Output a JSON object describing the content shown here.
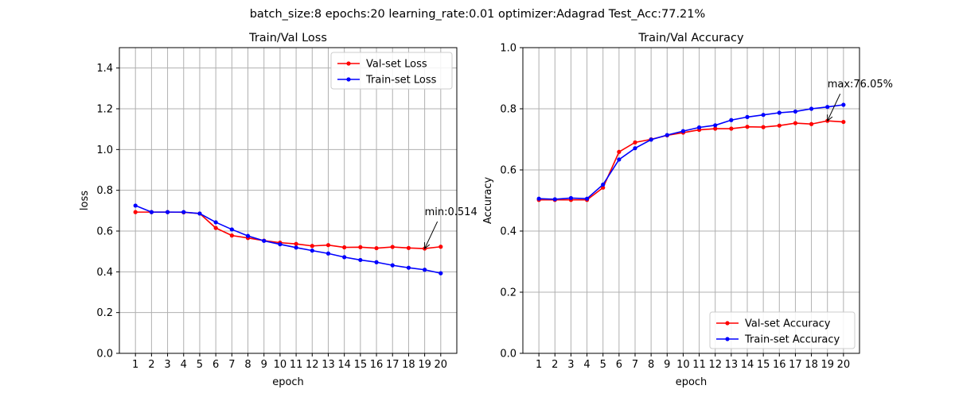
{
  "suptitle": "batch_size:8   epochs:20   learning_rate:0.01   optimizer:Adagrad   Test_Acc:77.21%",
  "colors": {
    "val": "#ff0000",
    "train": "#0000ff",
    "grid": "#b0b0b0"
  },
  "chart_data": [
    {
      "type": "line",
      "title": "Train/Val Loss",
      "xlabel": "epoch",
      "ylabel": "loss",
      "x": [
        1,
        2,
        3,
        4,
        5,
        6,
        7,
        8,
        9,
        10,
        11,
        12,
        13,
        14,
        15,
        16,
        17,
        18,
        19,
        20
      ],
      "xticks": [
        "1",
        "2",
        "3",
        "4",
        "5",
        "6",
        "7",
        "8",
        "9",
        "10",
        "11",
        "12",
        "13",
        "14",
        "15",
        "16",
        "17",
        "18",
        "19",
        "20"
      ],
      "ylim": [
        0,
        1.5
      ],
      "yticks": [
        "0.0",
        "0.2",
        "0.4",
        "0.6",
        "0.8",
        "1.0",
        "1.2",
        "1.4"
      ],
      "grid": true,
      "legend_position": "top-right",
      "series": [
        {
          "name": "Val-set Loss",
          "color": "#ff0000",
          "values": [
            0.693,
            0.693,
            0.693,
            0.692,
            0.686,
            0.615,
            0.578,
            0.566,
            0.553,
            0.543,
            0.537,
            0.527,
            0.531,
            0.52,
            0.521,
            0.516,
            0.522,
            0.517,
            0.514,
            0.523
          ]
        },
        {
          "name": "Train-set Loss",
          "color": "#0000ff",
          "values": [
            0.725,
            0.693,
            0.693,
            0.693,
            0.686,
            0.643,
            0.608,
            0.576,
            0.552,
            0.535,
            0.519,
            0.504,
            0.49,
            0.472,
            0.458,
            0.447,
            0.432,
            0.42,
            0.41,
            0.393
          ]
        }
      ],
      "annotation": {
        "text": "min:0.514",
        "x": 19,
        "y": 0.514
      }
    },
    {
      "type": "line",
      "title": "Train/Val Accuracy",
      "xlabel": "epoch",
      "ylabel": "Accuracy",
      "x": [
        1,
        2,
        3,
        4,
        5,
        6,
        7,
        8,
        9,
        10,
        11,
        12,
        13,
        14,
        15,
        16,
        17,
        18,
        19,
        20
      ],
      "xticks": [
        "1",
        "2",
        "3",
        "4",
        "5",
        "6",
        "7",
        "8",
        "9",
        "10",
        "11",
        "12",
        "13",
        "14",
        "15",
        "16",
        "17",
        "18",
        "19",
        "20"
      ],
      "ylim": [
        0,
        1.0
      ],
      "yticks": [
        "0.0",
        "0.2",
        "0.4",
        "0.6",
        "0.8",
        "1.0"
      ],
      "grid": true,
      "legend_position": "bottom-right",
      "series": [
        {
          "name": "Val-set Accuracy",
          "color": "#ff0000",
          "values": [
            0.502,
            0.502,
            0.502,
            0.502,
            0.542,
            0.659,
            0.69,
            0.7,
            0.713,
            0.722,
            0.731,
            0.735,
            0.735,
            0.741,
            0.74,
            0.745,
            0.753,
            0.75,
            0.7605,
            0.757
          ]
        },
        {
          "name": "Train-set Accuracy",
          "color": "#0000ff",
          "values": [
            0.506,
            0.504,
            0.508,
            0.506,
            0.552,
            0.634,
            0.671,
            0.699,
            0.714,
            0.727,
            0.739,
            0.746,
            0.763,
            0.773,
            0.78,
            0.787,
            0.791,
            0.8,
            0.806,
            0.813
          ]
        }
      ],
      "annotation": {
        "text": "max:76.05%",
        "x": 19,
        "y": 0.7605
      }
    }
  ]
}
